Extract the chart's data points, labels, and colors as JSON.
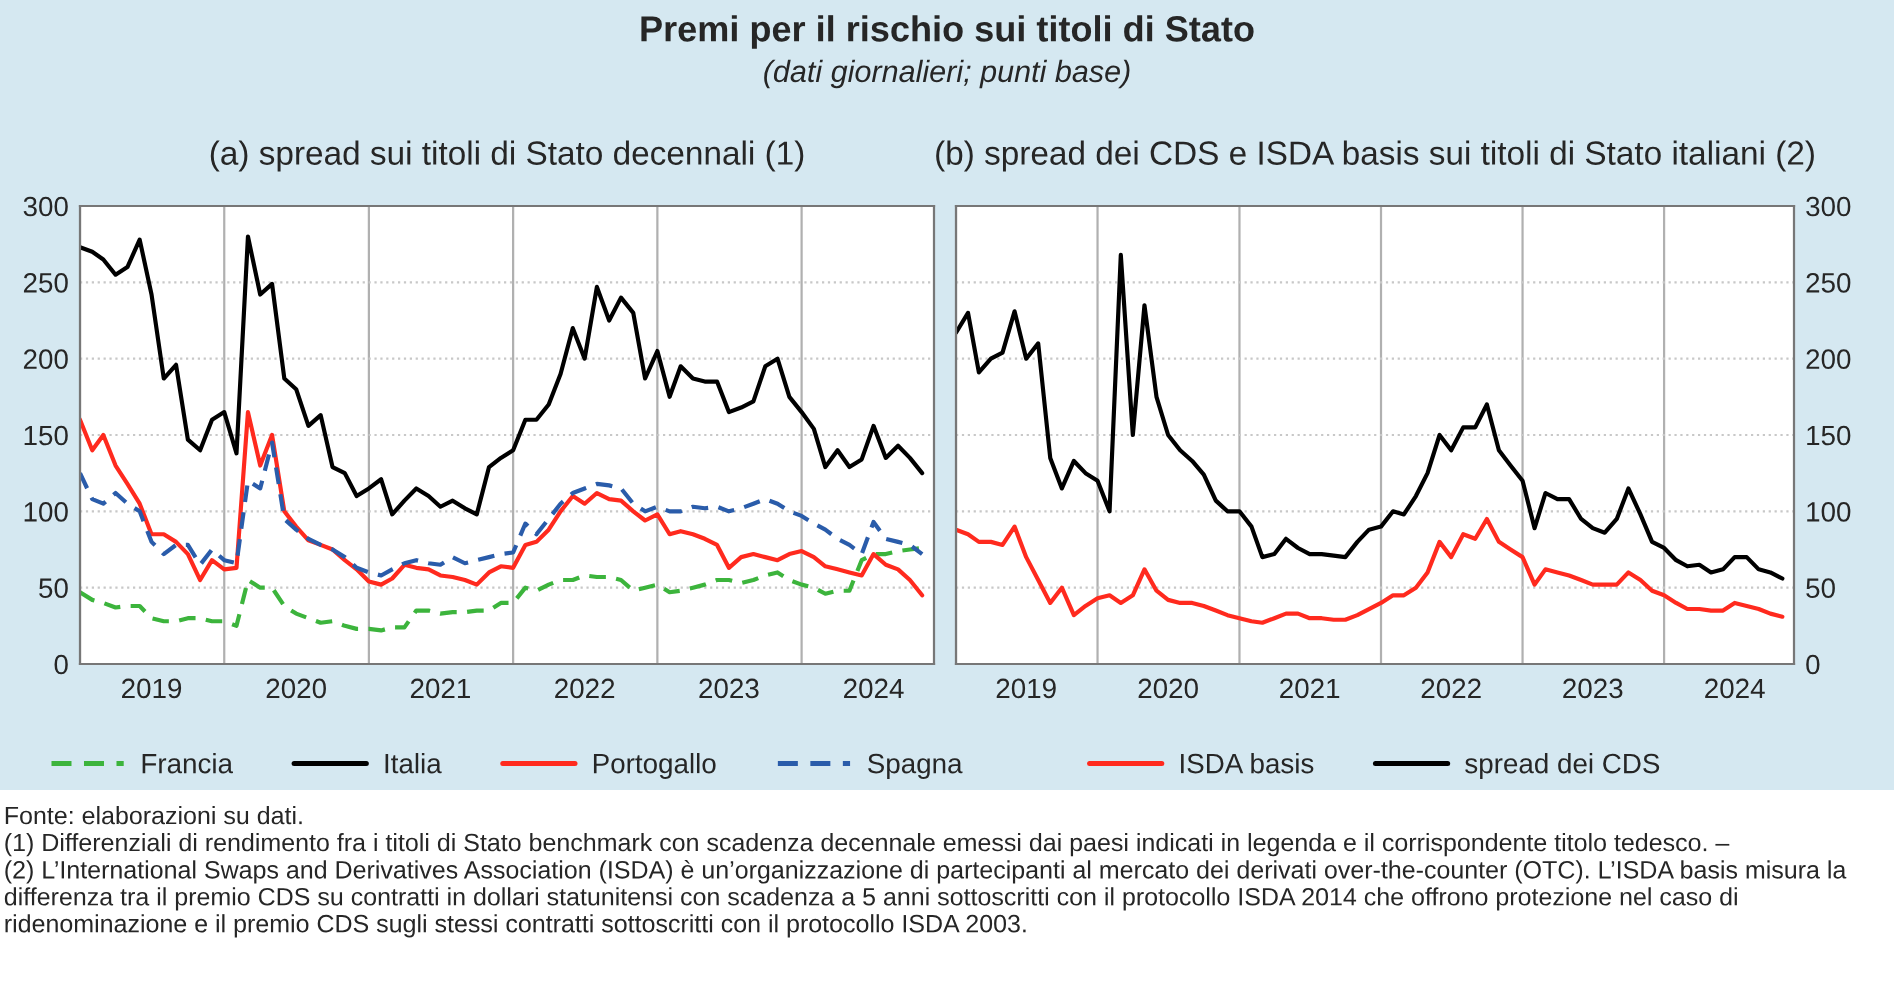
{
  "chart_data": [
    {
      "type": "other",
      "title": "Premi per il rischio sui titoli di Stato",
      "subtitle": "(dati giornalieri; punti base)",
      "annotations": [
        "Fonte: elaborazioni su dati.",
        "(1) Differenziali di rendimento fra i titoli di Stato benchmark con scadenza decennale emessi dai paesi indicati in legenda e il corrispondente titolo tedesco. –",
        "(2) L’International Swaps and Derivatives Association (ISDA) è un’organizzazione di partecipanti al mercato dei derivati over-the-counter (OTC). L’ISDA basis misura la differenza tra il premio CDS su contratti in dollari statunitensi con scadenza a 5 anni sottoscritti con il protocollo ISDA 2014 che offrono protezione nel caso di ridenominazione e il premio CDS sugli stessi contratti sottoscritti con il protocollo ISDA 2003."
      ]
    },
    {
      "type": "line",
      "title": "(a) spread sui titoli di Stato decennali (1)",
      "x": [
        "2019-01",
        "2019-02",
        "2019-03",
        "2019-04",
        "2019-05",
        "2019-06",
        "2019-07",
        "2019-08",
        "2019-09",
        "2019-10",
        "2019-11",
        "2019-12",
        "2020-01",
        "2020-02",
        "2020-03",
        "2020-04",
        "2020-05",
        "2020-06",
        "2020-07",
        "2020-08",
        "2020-09",
        "2020-10",
        "2020-11",
        "2020-12",
        "2021-01",
        "2021-02",
        "2021-03",
        "2021-04",
        "2021-05",
        "2021-06",
        "2021-07",
        "2021-08",
        "2021-09",
        "2021-10",
        "2021-11",
        "2021-12",
        "2022-01",
        "2022-02",
        "2022-03",
        "2022-04",
        "2022-05",
        "2022-06",
        "2022-07",
        "2022-08",
        "2022-09",
        "2022-10",
        "2022-11",
        "2022-12",
        "2023-01",
        "2023-02",
        "2023-03",
        "2023-04",
        "2023-05",
        "2023-06",
        "2023-07",
        "2023-08",
        "2023-09",
        "2023-10",
        "2023-11",
        "2023-12",
        "2024-01",
        "2024-02",
        "2024-03",
        "2024-04",
        "2024-05",
        "2024-06",
        "2024-07",
        "2024-08",
        "2024-09",
        "2024-10",
        "2024-11"
      ],
      "series": [
        {
          "name": "Francia",
          "color": "#3cb43c",
          "line_style": "dashed",
          "values": [
            47,
            42,
            40,
            37,
            38,
            38,
            30,
            28,
            28,
            30,
            30,
            28,
            28,
            25,
            55,
            50,
            50,
            38,
            33,
            30,
            27,
            28,
            25,
            23,
            23,
            22,
            24,
            24,
            35,
            35,
            33,
            34,
            34,
            35,
            35,
            40,
            40,
            50,
            48,
            52,
            55,
            55,
            58,
            57,
            57,
            55,
            48,
            50,
            52,
            47,
            48,
            50,
            52,
            55,
            55,
            53,
            55,
            58,
            60,
            55,
            52,
            50,
            46,
            48,
            48,
            68,
            72,
            72,
            74,
            75,
            76
          ]
        },
        {
          "name": "Italia",
          "color": "#000000",
          "line_style": "solid",
          "values": [
            273,
            270,
            265,
            255,
            260,
            278,
            242,
            187,
            196,
            147,
            140,
            160,
            165,
            138,
            280,
            242,
            249,
            187,
            180,
            156,
            163,
            129,
            125,
            110,
            115,
            121,
            98,
            107,
            115,
            110,
            103,
            107,
            102,
            98,
            129,
            135,
            140,
            160,
            160,
            170,
            190,
            220,
            200,
            247,
            225,
            240,
            230,
            187,
            205,
            175,
            195,
            187,
            185,
            185,
            165,
            168,
            172,
            195,
            200,
            175,
            165,
            154,
            129,
            140,
            129,
            134,
            156,
            135,
            143,
            135,
            125
          ]
        },
        {
          "name": "Portogallo",
          "color": "#ff2a1e",
          "line_style": "solid",
          "values": [
            160,
            140,
            150,
            130,
            118,
            105,
            85,
            85,
            80,
            72,
            55,
            68,
            62,
            63,
            165,
            130,
            150,
            100,
            90,
            81,
            78,
            75,
            68,
            62,
            54,
            52,
            56,
            65,
            63,
            62,
            58,
            57,
            55,
            52,
            60,
            64,
            63,
            78,
            80,
            88,
            100,
            110,
            105,
            112,
            108,
            107,
            100,
            94,
            98,
            85,
            87,
            85,
            82,
            78,
            63,
            70,
            72,
            70,
            68,
            72,
            74,
            70,
            64,
            62,
            60,
            58,
            72,
            65,
            62,
            55,
            45
          ]
        },
        {
          "name": "Spagna",
          "color": "#2a5caa",
          "line_style": "dashed",
          "values": [
            125,
            108,
            105,
            112,
            105,
            100,
            80,
            72,
            78,
            78,
            65,
            75,
            68,
            66,
            120,
            115,
            145,
            95,
            88,
            82,
            78,
            75,
            70,
            63,
            60,
            58,
            62,
            66,
            68,
            66,
            65,
            70,
            66,
            68,
            70,
            72,
            73,
            92,
            85,
            95,
            105,
            112,
            115,
            118,
            117,
            115,
            105,
            100,
            103,
            100,
            100,
            103,
            102,
            103,
            100,
            102,
            105,
            108,
            105,
            100,
            97,
            92,
            88,
            82,
            78,
            72,
            93,
            82,
            80,
            78,
            72
          ]
        }
      ],
      "xlim": [
        "2019-01-01",
        "2024-12-01"
      ],
      "xticks": [
        {
          "value": "2019-01-01",
          "label": null
        },
        {
          "value": "2019-07-01",
          "label": "2019"
        },
        {
          "value": "2020-01-01",
          "label": null
        },
        {
          "value": "2020-07-01",
          "label": "2020"
        },
        {
          "value": "2021-01-01",
          "label": null
        },
        {
          "value": "2021-07-01",
          "label": "2021"
        },
        {
          "value": "2022-01-01",
          "label": null
        },
        {
          "value": "2022-07-01",
          "label": "2022"
        },
        {
          "value": "2023-01-01",
          "label": null
        },
        {
          "value": "2023-07-01",
          "label": "2023"
        },
        {
          "value": "2024-01-01",
          "label": null
        },
        {
          "value": "2024-07-01",
          "label": "2024"
        }
      ],
      "ylim": [
        0,
        300
      ],
      "yticks": [
        0,
        50,
        100,
        150,
        200,
        250,
        300
      ],
      "grid": true,
      "legend": "bottom"
    },
    {
      "type": "line",
      "title": "(b) spread dei CDS e ISDA basis sui titoli di Stato italiani (2)",
      "x": [
        "2019-01",
        "2019-02",
        "2019-03",
        "2019-04",
        "2019-05",
        "2019-06",
        "2019-07",
        "2019-08",
        "2019-09",
        "2019-10",
        "2019-11",
        "2019-12",
        "2020-01",
        "2020-02",
        "2020-03",
        "2020-04",
        "2020-05",
        "2020-06",
        "2020-07",
        "2020-08",
        "2020-09",
        "2020-10",
        "2020-11",
        "2020-12",
        "2021-01",
        "2021-02",
        "2021-03",
        "2021-04",
        "2021-05",
        "2021-06",
        "2021-07",
        "2021-08",
        "2021-09",
        "2021-10",
        "2021-11",
        "2021-12",
        "2022-01",
        "2022-02",
        "2022-03",
        "2022-04",
        "2022-05",
        "2022-06",
        "2022-07",
        "2022-08",
        "2022-09",
        "2022-10",
        "2022-11",
        "2022-12",
        "2023-01",
        "2023-02",
        "2023-03",
        "2023-04",
        "2023-05",
        "2023-06",
        "2023-07",
        "2023-08",
        "2023-09",
        "2023-10",
        "2023-11",
        "2023-12",
        "2024-01",
        "2024-02",
        "2024-03",
        "2024-04",
        "2024-05",
        "2024-06",
        "2024-07",
        "2024-08",
        "2024-09",
        "2024-10",
        "2024-11"
      ],
      "series": [
        {
          "name": "ISDA basis",
          "color": "#ff2a1e",
          "axis": "y2",
          "line_style": "solid",
          "values": [
            88,
            85,
            80,
            80,
            78,
            90,
            70,
            55,
            40,
            50,
            32,
            38,
            43,
            45,
            40,
            45,
            62,
            48,
            42,
            40,
            40,
            38,
            35,
            32,
            30,
            28,
            27,
            30,
            33,
            33,
            30,
            30,
            29,
            29,
            32,
            36,
            40,
            45,
            45,
            50,
            60,
            80,
            70,
            85,
            82,
            95,
            80,
            75,
            70,
            52,
            62,
            60,
            58,
            55,
            52,
            52,
            52,
            60,
            55,
            48,
            45,
            40,
            36,
            36,
            35,
            35,
            40,
            38,
            36,
            33,
            31
          ]
        },
        {
          "name": "spread dei CDS",
          "color": "#000000",
          "axis": "y2",
          "line_style": "solid",
          "values": [
            217,
            230,
            191,
            200,
            204,
            231,
            200,
            210,
            135,
            115,
            133,
            125,
            120,
            100,
            268,
            150,
            235,
            175,
            150,
            140,
            133,
            124,
            107,
            100,
            100,
            90,
            70,
            72,
            82,
            76,
            72,
            72,
            71,
            70,
            80,
            88,
            90,
            100,
            98,
            110,
            125,
            150,
            140,
            155,
            155,
            170,
            140,
            130,
            120,
            89,
            112,
            108,
            108,
            95,
            89,
            86,
            95,
            115,
            98,
            80,
            76,
            68,
            64,
            65,
            60,
            62,
            70,
            70,
            62,
            60,
            56
          ]
        }
      ],
      "xlim": [
        "2019-01-01",
        "2024-12-01"
      ],
      "xticks": [
        {
          "value": "2019-01-01",
          "label": null
        },
        {
          "value": "2019-07-01",
          "label": "2019"
        },
        {
          "value": "2020-01-01",
          "label": null
        },
        {
          "value": "2020-07-01",
          "label": "2020"
        },
        {
          "value": "2021-01-01",
          "label": null
        },
        {
          "value": "2021-07-01",
          "label": "2021"
        },
        {
          "value": "2022-01-01",
          "label": null
        },
        {
          "value": "2022-07-01",
          "label": "2022"
        },
        {
          "value": "2023-01-01",
          "label": null
        },
        {
          "value": "2023-07-01",
          "label": "2023"
        },
        {
          "value": "2024-01-01",
          "label": null
        },
        {
          "value": "2024-07-01",
          "label": "2024"
        }
      ],
      "y2lim": [
        0,
        300
      ],
      "y2ticks": [
        0,
        50,
        100,
        150,
        200,
        250,
        300
      ],
      "grid": true,
      "legend": "bottom"
    }
  ]
}
